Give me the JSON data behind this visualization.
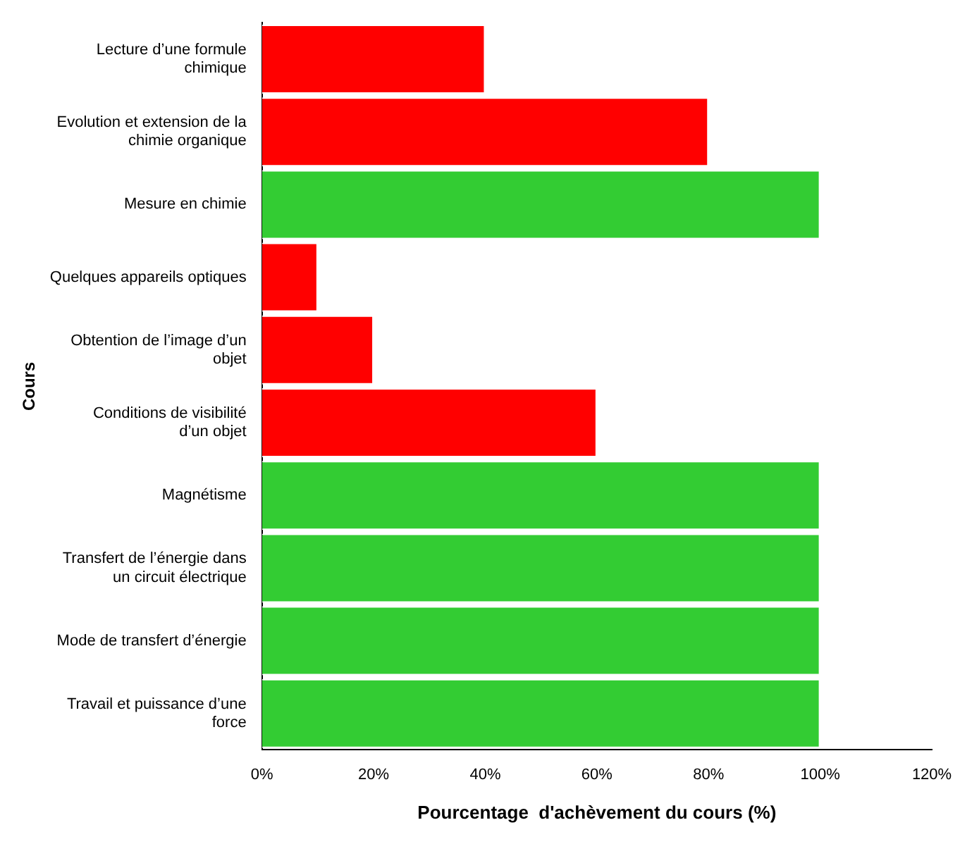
{
  "chart_data": {
    "type": "bar",
    "orientation": "horizontal",
    "xlabel": "Pourcentage  d'achèvement du cours (%)",
    "ylabel": "Cours",
    "categories": [
      "Lecture d’une formule chimique",
      "Evolution et extension de la chimie organique",
      "Mesure en chimie",
      "Quelques appareils optiques",
      "Obtention de l’image d’un objet",
      "Conditions de visibilité d’un objet",
      "Magnétisme",
      "Transfert de l’énergie dans un circuit électrique",
      "Mode de transfert d’énergie",
      "Travail et puissance d’une force"
    ],
    "values": [
      40,
      80,
      100,
      10,
      20,
      60,
      100,
      100,
      100,
      100
    ],
    "colors": [
      "#ff0000",
      "#ff0000",
      "#33cc33",
      "#ff0000",
      "#ff0000",
      "#ff0000",
      "#33cc33",
      "#33cc33",
      "#33cc33",
      "#33cc33"
    ],
    "xlim": [
      0,
      120
    ],
    "xticks": [
      {
        "value": 0,
        "label": "0%"
      },
      {
        "value": 20,
        "label": "20%"
      },
      {
        "value": 40,
        "label": "40%"
      },
      {
        "value": 60,
        "label": "60%"
      },
      {
        "value": 80,
        "label": "80%"
      },
      {
        "value": 100,
        "label": "100%"
      },
      {
        "value": 120,
        "label": "120%"
      }
    ],
    "grid": false,
    "legend": false
  }
}
